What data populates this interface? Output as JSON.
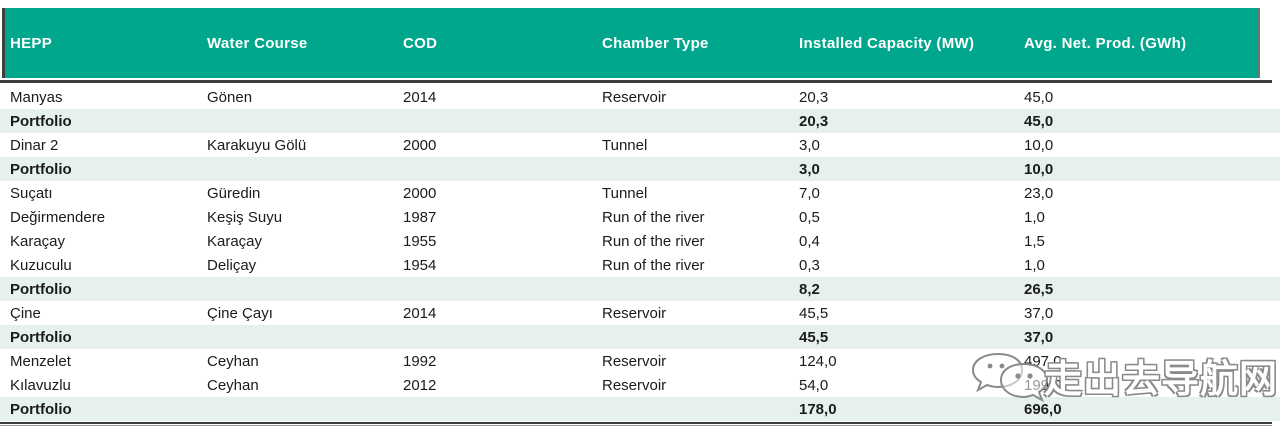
{
  "colors": {
    "header_bg": "#00A78C",
    "header_text": "#FFFFFF",
    "portfolio_row_bg": "#E6F1EC",
    "body_text": "#1B1B1B",
    "rule_dark": "#3B3D3C"
  },
  "table": {
    "columns": [
      "HEPP",
      "Water Course",
      "COD",
      "Chamber Type",
      "Installed Capacity (MW)",
      "Avg. Net. Prod. (GWh)"
    ],
    "rows": [
      {
        "hepp": "Manyas",
        "water_course": "Gönen",
        "cod": "2014",
        "chamber_type": "Reservoir",
        "installed_capacity": "20,3",
        "avg_net_prod": "45,0",
        "portfolio": false
      },
      {
        "hepp": "Portfolio",
        "water_course": "",
        "cod": "",
        "chamber_type": "",
        "installed_capacity": "20,3",
        "avg_net_prod": "45,0",
        "portfolio": true
      },
      {
        "hepp": "Dinar 2",
        "water_course": "Karakuyu Gölü",
        "cod": "2000",
        "chamber_type": "Tunnel",
        "installed_capacity": "3,0",
        "avg_net_prod": "10,0",
        "portfolio": false
      },
      {
        "hepp": "Portfolio",
        "water_course": "",
        "cod": "",
        "chamber_type": "",
        "installed_capacity": "3,0",
        "avg_net_prod": "10,0",
        "portfolio": true
      },
      {
        "hepp": "Suçatı",
        "water_course": "Güredin",
        "cod": "2000",
        "chamber_type": "Tunnel",
        "installed_capacity": "7,0",
        "avg_net_prod": "23,0",
        "portfolio": false
      },
      {
        "hepp": "Değirmendere",
        "water_course": "Keşiş Suyu",
        "cod": "1987",
        "chamber_type": "Run of the river",
        "installed_capacity": "0,5",
        "avg_net_prod": "1,0",
        "portfolio": false
      },
      {
        "hepp": "Karaçay",
        "water_course": "Karaçay",
        "cod": "1955",
        "chamber_type": "Run of the river",
        "installed_capacity": "0,4",
        "avg_net_prod": "1,5",
        "portfolio": false
      },
      {
        "hepp": "Kuzuculu",
        "water_course": "Deliçay",
        "cod": "1954",
        "chamber_type": "Run of the river",
        "installed_capacity": "0,3",
        "avg_net_prod": "1,0",
        "portfolio": false
      },
      {
        "hepp": "Portfolio",
        "water_course": "",
        "cod": "",
        "chamber_type": "",
        "installed_capacity": "8,2",
        "avg_net_prod": "26,5",
        "portfolio": true
      },
      {
        "hepp": "Çine",
        "water_course": "Çine Çayı",
        "cod": "2014",
        "chamber_type": "Reservoir",
        "installed_capacity": "45,5",
        "avg_net_prod": "37,0",
        "portfolio": false
      },
      {
        "hepp": "Portfolio",
        "water_course": "",
        "cod": "",
        "chamber_type": "",
        "installed_capacity": "45,5",
        "avg_net_prod": "37,0",
        "portfolio": true
      },
      {
        "hepp": "Menzelet",
        "water_course": "Ceyhan",
        "cod": "1992",
        "chamber_type": "Reservoir",
        "installed_capacity": "124,0",
        "avg_net_prod": "497,0",
        "portfolio": false
      },
      {
        "hepp": "Kılavuzlu",
        "water_course": "Ceyhan",
        "cod": "2012",
        "chamber_type": "Reservoir",
        "installed_capacity": "54,0",
        "avg_net_prod": "199,0",
        "portfolio": false
      },
      {
        "hepp": "Portfolio",
        "water_course": "",
        "cod": "",
        "chamber_type": "",
        "installed_capacity": "178,0",
        "avg_net_prod": "696,0",
        "portfolio": true
      }
    ]
  },
  "watermark": {
    "text": "走出去导航网",
    "icon": "chat-bubbles-icon"
  }
}
